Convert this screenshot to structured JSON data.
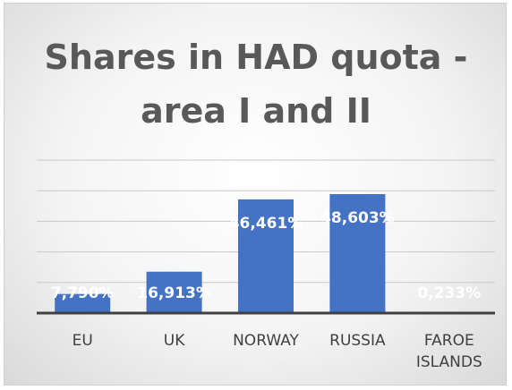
{
  "chart_data": {
    "type": "bar",
    "title": "Shares in HAD quota - area I and II",
    "categories": [
      "EU",
      "UK",
      "NORWAY",
      "RUSSIA",
      "FAROE ISLANDS"
    ],
    "values": [
      7.79,
      16.913,
      46.461,
      48.603,
      0.233
    ],
    "value_labels": [
      "7,790%",
      "16,913%",
      "46,461%",
      "48,603%",
      "0,233%"
    ],
    "color": "#4472c4",
    "ylim": [
      0,
      62.5
    ],
    "yticks": [
      0,
      12.5,
      25,
      37.5,
      50,
      62.5
    ],
    "grid": true
  }
}
